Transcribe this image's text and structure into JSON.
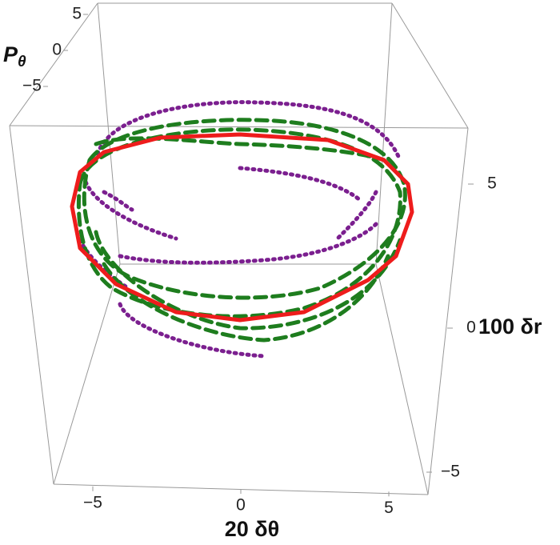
{
  "chart_data": {
    "type": "plot3d",
    "x_label": "20 δθ",
    "y_label": "100 δr",
    "z_label": {
      "main": "P",
      "sub": "θ"
    },
    "xticks": [
      {
        "value": -5,
        "label": "−5"
      },
      0,
      5
    ],
    "yticks": [
      {
        "value": -5,
        "label": "−5"
      },
      0,
      5
    ],
    "zticks": [
      {
        "value": -5,
        "label": "−5"
      },
      0,
      5
    ]
  }
}
